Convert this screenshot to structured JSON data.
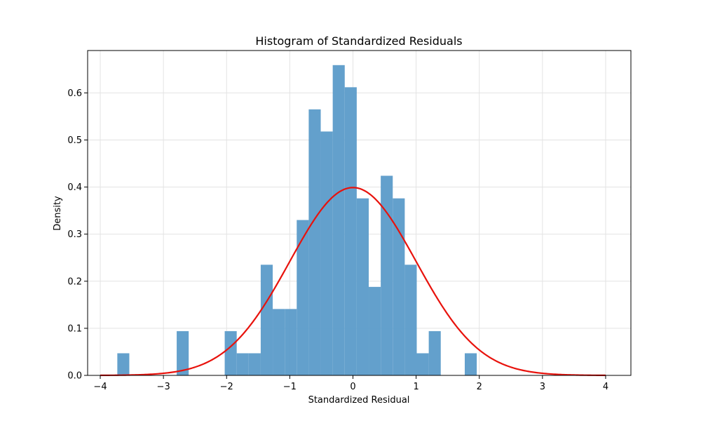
{
  "chart_data": {
    "type": "bar",
    "title": "Histogram of Standardized Residuals",
    "xlabel": "Standardized Residual",
    "ylabel": "Density",
    "xlim": [
      -4.2,
      4.4
    ],
    "ylim": [
      0,
      0.69
    ],
    "grid": true,
    "x_ticks": [
      -4,
      -3,
      -2,
      -1,
      0,
      1,
      2,
      3,
      4
    ],
    "x_tick_labels": [
      "−4",
      "−3",
      "−2",
      "−1",
      "0",
      "1",
      "2",
      "3",
      "4"
    ],
    "y_ticks": [
      0.0,
      0.1,
      0.2,
      0.3,
      0.4,
      0.5,
      0.6
    ],
    "y_tick_labels": [
      "0.0",
      "0.1",
      "0.2",
      "0.3",
      "0.4",
      "0.5",
      "0.6"
    ],
    "series": [
      {
        "type": "histogram",
        "color": "#5b9bc9",
        "bins": [
          {
            "x0": -3.73,
            "x1": -3.54,
            "value": 0.047
          },
          {
            "x0": -3.54,
            "x1": -3.35,
            "value": 0.0
          },
          {
            "x0": -3.35,
            "x1": -3.17,
            "value": 0.0
          },
          {
            "x0": -3.17,
            "x1": -2.98,
            "value": 0.0
          },
          {
            "x0": -2.98,
            "x1": -2.79,
            "value": 0.0
          },
          {
            "x0": -2.79,
            "x1": -2.6,
            "value": 0.094
          },
          {
            "x0": -2.6,
            "x1": -2.41,
            "value": 0.0
          },
          {
            "x0": -2.41,
            "x1": -2.22,
            "value": 0.0
          },
          {
            "x0": -2.22,
            "x1": -2.03,
            "value": 0.0
          },
          {
            "x0": -2.03,
            "x1": -1.84,
            "value": 0.094
          },
          {
            "x0": -1.84,
            "x1": -1.65,
            "value": 0.047
          },
          {
            "x0": -1.65,
            "x1": -1.46,
            "value": 0.047
          },
          {
            "x0": -1.46,
            "x1": -1.27,
            "value": 0.235
          },
          {
            "x0": -1.27,
            "x1": -1.08,
            "value": 0.141
          },
          {
            "x0": -1.08,
            "x1": -0.89,
            "value": 0.141
          },
          {
            "x0": -0.89,
            "x1": -0.7,
            "value": 0.33
          },
          {
            "x0": -0.7,
            "x1": -0.51,
            "value": 0.565
          },
          {
            "x0": -0.51,
            "x1": -0.32,
            "value": 0.518
          },
          {
            "x0": -0.32,
            "x1": -0.13,
            "value": 0.659
          },
          {
            "x0": -0.13,
            "x1": 0.06,
            "value": 0.612
          },
          {
            "x0": 0.06,
            "x1": 0.25,
            "value": 0.376
          },
          {
            "x0": 0.25,
            "x1": 0.44,
            "value": 0.188
          },
          {
            "x0": 0.44,
            "x1": 0.63,
            "value": 0.424
          },
          {
            "x0": 0.63,
            "x1": 0.82,
            "value": 0.376
          },
          {
            "x0": 0.82,
            "x1": 1.01,
            "value": 0.235
          },
          {
            "x0": 1.01,
            "x1": 1.2,
            "value": 0.047
          },
          {
            "x0": 1.2,
            "x1": 1.39,
            "value": 0.094
          },
          {
            "x0": 1.39,
            "x1": 1.58,
            "value": 0.0
          },
          {
            "x0": 1.58,
            "x1": 1.77,
            "value": 0.0
          },
          {
            "x0": 1.77,
            "x1": 1.96,
            "value": 0.047
          }
        ]
      },
      {
        "type": "line",
        "color": "#e8120c",
        "function": "standard_normal_pdf",
        "x_range": [
          -4,
          4
        ]
      }
    ]
  }
}
